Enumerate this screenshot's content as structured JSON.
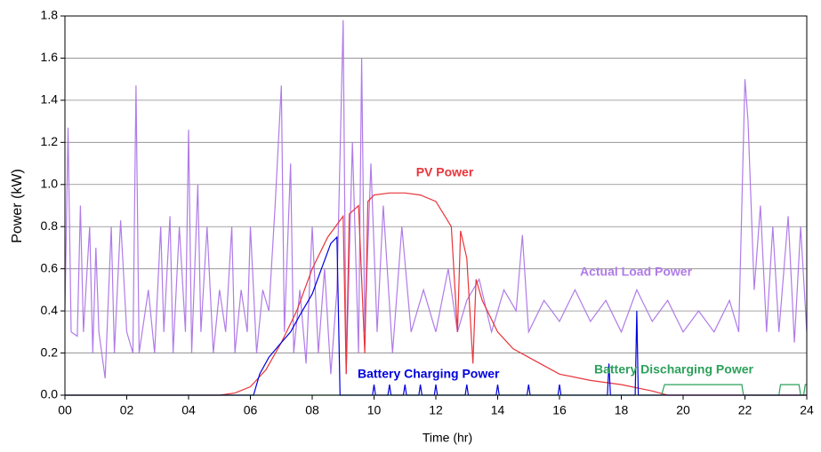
{
  "chart_data": {
    "type": "line",
    "xlabel": "Time (hr)",
    "ylabel": "Power (kW)",
    "xlim": [
      0,
      24
    ],
    "ylim": [
      0,
      1.8
    ],
    "xticks": [
      {
        "value": 0,
        "label": "00"
      },
      {
        "value": 2,
        "label": "02"
      },
      {
        "value": 4,
        "label": "04"
      },
      {
        "value": 6,
        "label": "06"
      },
      {
        "value": 8,
        "label": "08"
      },
      10,
      12,
      14,
      16,
      18,
      20,
      22,
      24
    ],
    "yticks": [
      {
        "value": 0,
        "label": "0.0"
      },
      0.2,
      0.4,
      0.6,
      0.8,
      {
        "value": 1,
        "label": "1.0"
      },
      1.2,
      1.4,
      1.6,
      1.8
    ],
    "grid": true,
    "series": [
      {
        "name": "Actual Load Power",
        "color": "#b07ce8",
        "x": [
          0,
          0.1,
          0.2,
          0.4,
          0.5,
          0.6,
          0.8,
          0.9,
          1.0,
          1.1,
          1.3,
          1.5,
          1.6,
          1.8,
          2.0,
          2.2,
          2.3,
          2.4,
          2.7,
          2.9,
          3.1,
          3.2,
          3.4,
          3.5,
          3.7,
          3.9,
          4.0,
          4.1,
          4.3,
          4.4,
          4.6,
          4.8,
          5.0,
          5.2,
          5.4,
          5.5,
          5.7,
          5.9,
          6.0,
          6.2,
          6.4,
          6.6,
          6.8,
          7.0,
          7.1,
          7.3,
          7.4,
          7.6,
          7.8,
          8.0,
          8.2,
          8.4,
          8.6,
          8.8,
          9.0,
          9.1,
          9.3,
          9.5,
          9.6,
          9.7,
          9.9,
          10.1,
          10.3,
          10.6,
          10.9,
          11.2,
          11.6,
          12.0,
          12.4,
          12.7,
          13.0,
          13.4,
          13.8,
          14.2,
          14.6,
          14.8,
          15.0,
          15.5,
          16.0,
          16.5,
          17.0,
          17.5,
          18.0,
          18.5,
          19.0,
          19.5,
          20.0,
          20.5,
          21.0,
          21.5,
          21.8,
          22.0,
          22.1,
          22.3,
          22.5,
          22.7,
          22.9,
          23.1,
          23.4,
          23.6,
          23.8,
          24.0
        ],
        "values": [
          0.4,
          1.27,
          0.3,
          0.28,
          0.9,
          0.3,
          0.8,
          0.2,
          0.7,
          0.3,
          0.08,
          0.8,
          0.2,
          0.83,
          0.3,
          0.2,
          1.47,
          0.2,
          0.5,
          0.2,
          0.8,
          0.3,
          0.85,
          0.2,
          0.8,
          0.3,
          1.26,
          0.2,
          1.0,
          0.3,
          0.8,
          0.2,
          0.5,
          0.3,
          0.8,
          0.2,
          0.5,
          0.3,
          0.8,
          0.2,
          0.5,
          0.4,
          0.9,
          1.47,
          0.3,
          1.1,
          0.2,
          0.5,
          0.15,
          0.8,
          0.2,
          0.6,
          0.1,
          0.5,
          1.78,
          0.1,
          1.2,
          0.2,
          1.6,
          0.3,
          1.1,
          0.3,
          0.9,
          0.2,
          0.8,
          0.3,
          0.5,
          0.3,
          0.6,
          0.3,
          0.45,
          0.55,
          0.3,
          0.5,
          0.4,
          0.76,
          0.3,
          0.45,
          0.35,
          0.5,
          0.35,
          0.45,
          0.3,
          0.5,
          0.35,
          0.45,
          0.3,
          0.4,
          0.3,
          0.45,
          0.3,
          1.5,
          1.3,
          0.5,
          0.9,
          0.3,
          0.8,
          0.3,
          0.85,
          0.25,
          0.8,
          0.3
        ]
      },
      {
        "name": "PV Power",
        "color": "#e8343a",
        "x": [
          0,
          5,
          5.5,
          6,
          6.5,
          7,
          7.5,
          8,
          8.5,
          9,
          9.1,
          9.2,
          9.5,
          9.7,
          9.8,
          10,
          10.5,
          11,
          11.5,
          12,
          12.5,
          12.7,
          12.8,
          13,
          13.2,
          13.3,
          13.5,
          14,
          14.5,
          15,
          15.5,
          16,
          17,
          18,
          19,
          19.5,
          24
        ],
        "values": [
          0,
          0,
          0.01,
          0.04,
          0.12,
          0.25,
          0.4,
          0.6,
          0.75,
          0.85,
          0.1,
          0.86,
          0.9,
          0.2,
          0.92,
          0.95,
          0.96,
          0.96,
          0.95,
          0.92,
          0.8,
          0.3,
          0.78,
          0.65,
          0.15,
          0.55,
          0.45,
          0.3,
          0.22,
          0.18,
          0.14,
          0.1,
          0.07,
          0.05,
          0.02,
          0,
          0
        ]
      },
      {
        "name": "Battery Charging Power",
        "color": "#0000dd",
        "x": [
          0,
          6.1,
          6.3,
          6.6,
          7,
          7.3,
          7.6,
          8,
          8.3,
          8.6,
          8.8,
          8.9,
          9.95,
          10,
          10.05,
          10.45,
          10.5,
          10.55,
          10.95,
          11,
          11.05,
          11.45,
          11.5,
          11.55,
          11.95,
          12,
          12.05,
          12.95,
          13,
          13.05,
          13.95,
          14,
          14.05,
          14.95,
          15,
          15.05,
          15.95,
          16,
          16.05,
          17.55,
          17.6,
          17.65,
          18.45,
          18.5,
          18.55,
          19.2,
          24
        ],
        "values": [
          0,
          0,
          0.1,
          0.18,
          0.25,
          0.3,
          0.38,
          0.48,
          0.6,
          0.72,
          0.75,
          0,
          0,
          0.05,
          0,
          0,
          0.05,
          0,
          0,
          0.05,
          0,
          0,
          0.05,
          0,
          0,
          0.05,
          0,
          0,
          0.05,
          0,
          0,
          0.05,
          0,
          0,
          0.05,
          0,
          0,
          0.05,
          0,
          0,
          0.15,
          0,
          0,
          0.4,
          0,
          0,
          0
        ]
      },
      {
        "name": "Battery Discharging Power",
        "color": "#2ca05a",
        "x": [
          0,
          19.3,
          19.4,
          21.9,
          21.95,
          23.1,
          23.15,
          23.75,
          23.8,
          23.9,
          23.95,
          24
        ],
        "values": [
          0,
          0,
          0.05,
          0.05,
          0,
          0,
          0.05,
          0.05,
          0,
          0,
          0.05,
          0.05
        ]
      }
    ]
  }
}
